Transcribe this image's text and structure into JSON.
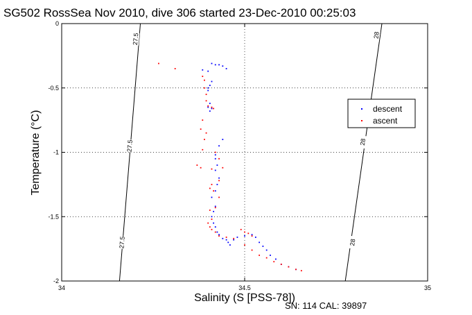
{
  "chart_data": {
    "type": "scatter",
    "title": "SG502 RossSea Nov 2010, dive 306 started 23-Dec-2010 00:25:03",
    "xlabel": "Salinity (S [PSS-78])",
    "ylabel": "Temperature (°C)",
    "footer": "SN: 114  CAL: 39897",
    "xlim": [
      34,
      35
    ],
    "ylim": [
      -2,
      0
    ],
    "xticks": [
      34,
      34.5,
      35
    ],
    "yticks": [
      0,
      -0.5,
      -1,
      -1.5,
      -2
    ],
    "x_tick_labels": [
      "34",
      "34.5",
      "35"
    ],
    "y_tick_labels": [
      "0",
      "-0.5",
      "-1",
      "-1.5",
      "-2"
    ],
    "grid": true,
    "legend": {
      "placement": "right",
      "entries": [
        {
          "name": "descent",
          "color": "#0000ff"
        },
        {
          "name": "ascent",
          "color": "#ff0000"
        }
      ]
    },
    "isopycnals": [
      {
        "label": "27.5",
        "points": [
          [
            34.215,
            0
          ],
          [
            34.158,
            -2
          ]
        ],
        "label_positions": [
          [
            34.202,
            -0.12
          ],
          [
            34.186,
            -0.95
          ],
          [
            34.165,
            -1.7
          ]
        ]
      },
      {
        "label": "28",
        "points": [
          [
            34.875,
            0
          ],
          [
            34.775,
            -2
          ]
        ],
        "label_positions": [
          [
            34.86,
            -0.09
          ],
          [
            34.823,
            -0.92
          ],
          [
            34.795,
            -1.7
          ]
        ]
      }
    ],
    "series": [
      {
        "name": "descent",
        "color": "#0000ff",
        "points": [
          [
            34.41,
            -0.31
          ],
          [
            34.42,
            -0.32
          ],
          [
            34.43,
            -0.32
          ],
          [
            34.44,
            -0.33
          ],
          [
            34.45,
            -0.35
          ],
          [
            34.385,
            -0.36
          ],
          [
            34.4,
            -0.37
          ],
          [
            34.41,
            -0.45
          ],
          [
            34.405,
            -0.48
          ],
          [
            34.4,
            -0.5
          ],
          [
            34.4,
            -0.52
          ],
          [
            34.405,
            -0.62
          ],
          [
            34.4,
            -0.65
          ],
          [
            34.41,
            -0.66
          ],
          [
            34.405,
            -0.68
          ],
          [
            34.44,
            -0.9
          ],
          [
            34.43,
            -0.95
          ],
          [
            34.42,
            -1.02
          ],
          [
            34.42,
            -1.05
          ],
          [
            34.425,
            -1.1
          ],
          [
            34.42,
            -1.14
          ],
          [
            34.43,
            -1.2
          ],
          [
            34.425,
            -1.25
          ],
          [
            34.42,
            -1.3
          ],
          [
            34.41,
            -1.35
          ],
          [
            34.42,
            -1.42
          ],
          [
            34.415,
            -1.46
          ],
          [
            34.41,
            -1.5
          ],
          [
            34.415,
            -1.55
          ],
          [
            34.42,
            -1.58
          ],
          [
            34.425,
            -1.62
          ],
          [
            34.43,
            -1.64
          ],
          [
            34.44,
            -1.67
          ],
          [
            34.45,
            -1.68
          ],
          [
            34.455,
            -1.7
          ],
          [
            34.46,
            -1.72
          ],
          [
            34.47,
            -1.68
          ],
          [
            34.48,
            -1.66
          ],
          [
            34.5,
            -1.65
          ],
          [
            34.52,
            -1.64
          ],
          [
            34.53,
            -1.66
          ],
          [
            34.54,
            -1.7
          ],
          [
            34.55,
            -1.73
          ],
          [
            34.56,
            -1.76
          ],
          [
            34.57,
            -1.8
          ],
          [
            34.585,
            -1.83
          ],
          [
            34.6,
            -1.87
          ],
          [
            34.62,
            -1.89
          ],
          [
            34.64,
            -1.91
          ]
        ]
      },
      {
        "name": "ascent",
        "color": "#ff0000",
        "points": [
          [
            34.265,
            -0.31
          ],
          [
            34.31,
            -0.35
          ],
          [
            34.385,
            -0.41
          ],
          [
            34.39,
            -0.44
          ],
          [
            34.39,
            -0.5
          ],
          [
            34.395,
            -0.55
          ],
          [
            34.395,
            -0.6
          ],
          [
            34.4,
            -0.64
          ],
          [
            34.41,
            -0.65
          ],
          [
            34.415,
            -0.66
          ],
          [
            34.385,
            -0.75
          ],
          [
            34.38,
            -0.82
          ],
          [
            34.395,
            -0.85
          ],
          [
            34.39,
            -0.9
          ],
          [
            34.385,
            -0.98
          ],
          [
            34.42,
            -1.0
          ],
          [
            34.43,
            -1.05
          ],
          [
            34.37,
            -1.1
          ],
          [
            34.38,
            -1.12
          ],
          [
            34.41,
            -1.13
          ],
          [
            34.44,
            -1.12
          ],
          [
            34.43,
            -1.22
          ],
          [
            34.41,
            -1.25
          ],
          [
            34.405,
            -1.28
          ],
          [
            34.415,
            -1.3
          ],
          [
            34.43,
            -1.35
          ],
          [
            34.42,
            -1.43
          ],
          [
            34.405,
            -1.45
          ],
          [
            34.41,
            -1.52
          ],
          [
            34.4,
            -1.55
          ],
          [
            34.405,
            -1.58
          ],
          [
            34.41,
            -1.6
          ],
          [
            34.42,
            -1.62
          ],
          [
            34.43,
            -1.65
          ],
          [
            34.45,
            -1.66
          ],
          [
            34.47,
            -1.67
          ],
          [
            34.49,
            -1.6
          ],
          [
            34.5,
            -1.62
          ],
          [
            34.51,
            -1.63
          ],
          [
            34.52,
            -1.65
          ],
          [
            34.5,
            -1.72
          ],
          [
            34.52,
            -1.76
          ],
          [
            34.54,
            -1.8
          ],
          [
            34.56,
            -1.82
          ],
          [
            34.58,
            -1.85
          ],
          [
            34.6,
            -1.87
          ],
          [
            34.62,
            -1.89
          ],
          [
            34.64,
            -1.91
          ],
          [
            34.655,
            -1.92
          ]
        ]
      }
    ]
  }
}
